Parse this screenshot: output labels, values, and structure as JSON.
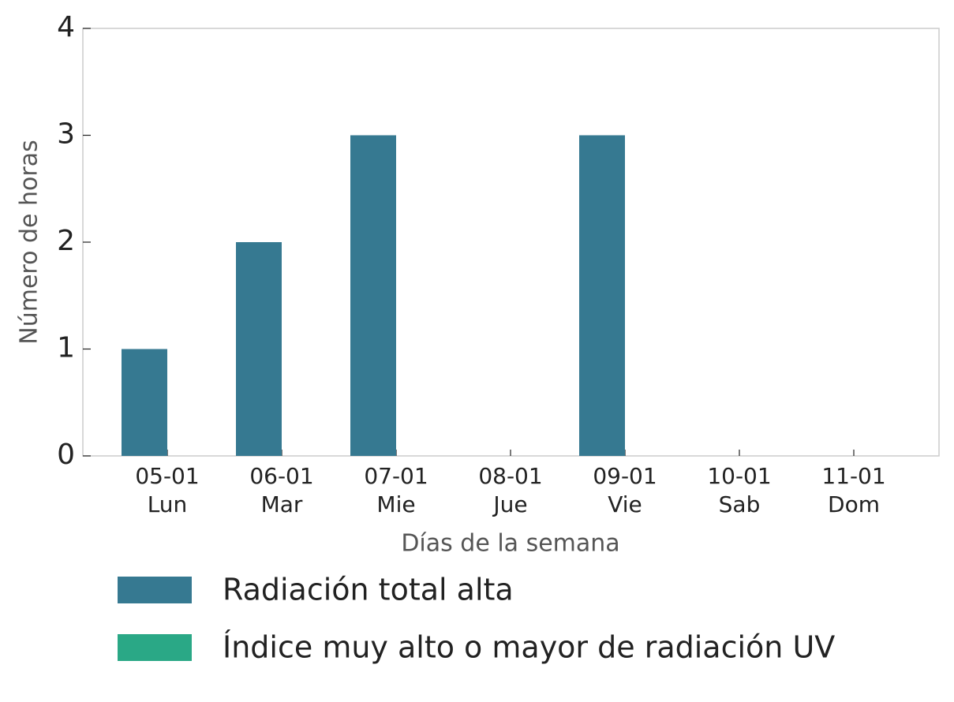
{
  "chart_data": {
    "type": "bar",
    "x_label": "Días de la semana",
    "y_label": "Número de horas",
    "categories": [
      [
        "05-01",
        "Lun"
      ],
      [
        "06-01",
        "Mar"
      ],
      [
        "07-01",
        "Mie"
      ],
      [
        "08-01",
        "Jue"
      ],
      [
        "09-01",
        "Vie"
      ],
      [
        "10-01",
        "Sab"
      ],
      [
        "11-01",
        "Dom"
      ]
    ],
    "series": [
      {
        "name": "Radiación total alta",
        "color": "#367991",
        "values": [
          1,
          2,
          3,
          0,
          3,
          0,
          0
        ]
      },
      {
        "name": "Índice muy alto o mayor de radiación UV",
        "color": "#2aa886",
        "values": [
          0,
          0,
          0,
          0,
          0,
          0,
          0
        ]
      }
    ],
    "ylim": [
      0,
      4
    ],
    "yticks": [
      0,
      1,
      2,
      3,
      4
    ]
  }
}
